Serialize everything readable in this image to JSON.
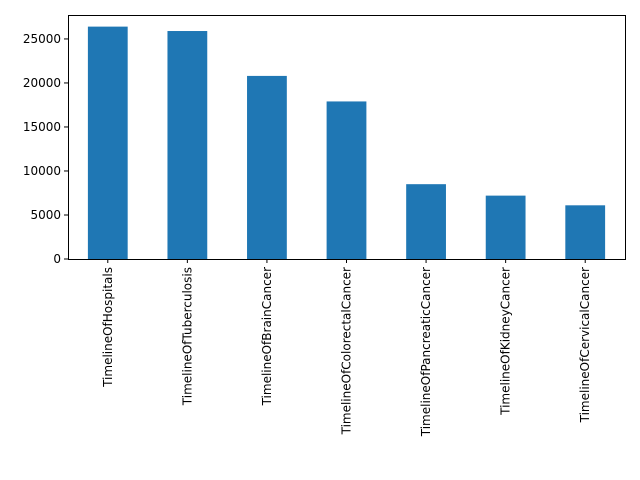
{
  "chart_data": {
    "type": "bar",
    "title": "",
    "xlabel": "",
    "ylabel": "",
    "categories": [
      "TimelineOfHospitals",
      "TimelineOfTuberculosis",
      "TimelineOfBrainCancer",
      "TimelineOfColorectalCancer",
      "TimelineOfPancreaticCancer",
      "TimelineOfKidneyCancer",
      "TimelineOfCervicalCancer"
    ],
    "values": [
      26400,
      25900,
      20800,
      17900,
      8500,
      7200,
      6100
    ],
    "ylim": [
      0,
      27720
    ],
    "yticks": [
      0,
      5000,
      10000,
      15000,
      20000,
      25000
    ],
    "ytick_labels": [
      "0",
      "5000",
      "10000",
      "15000",
      "20000",
      "25000"
    ],
    "bar_color": "#1f77b4",
    "grid": false,
    "legend": "none"
  }
}
